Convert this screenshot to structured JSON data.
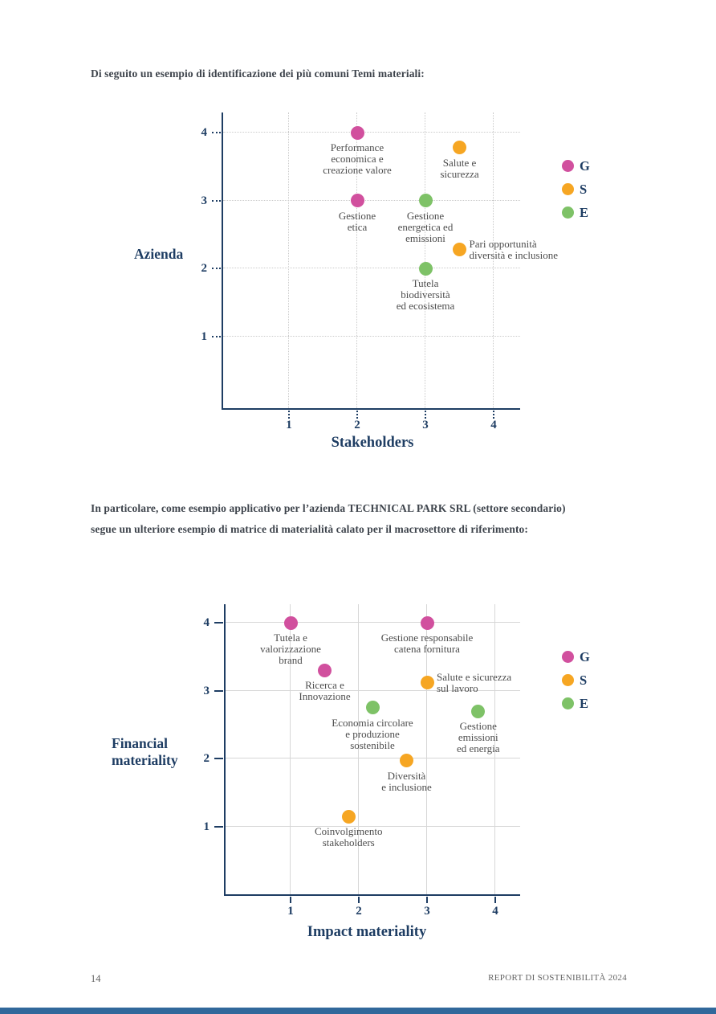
{
  "page": {
    "intro_text": "Di seguito un esempio di identificazione dei più comuni Temi materiali:",
    "paragraph2_line1": "In particolare, come esempio applicativo per l’azienda TECHNICAL PARK SRL (settore secondario)",
    "paragraph2_line2": "segue un ulteriore esempio di matrice di materialità calato per il macrosettore di riferimento:",
    "footer": {
      "page_number": "14",
      "report_title": "REPORT DI SOSTENIBILITÀ 2024"
    }
  },
  "colors": {
    "g_pink": "#d1509e",
    "s_orange": "#f6a623",
    "e_green": "#7ec267",
    "axis_navy": "#1e3d63",
    "point_label_gray": "#4d4d4d",
    "body_text": "#3e444c",
    "footer_gray": "#636363",
    "grid_gray": "#d2d2d2",
    "bottom_bar_blue": "#31689b"
  },
  "legend": {
    "items": [
      {
        "label": "G",
        "color": "#d1509e"
      },
      {
        "label": "S",
        "color": "#f6a623"
      },
      {
        "label": "E",
        "color": "#7ec267"
      }
    ]
  },
  "chart_data": [
    {
      "type": "scatter",
      "xlabel": "Stakeholders",
      "ylabel": "Azienda",
      "xticks": [
        1,
        2,
        3,
        4
      ],
      "yticks": [
        1,
        2,
        3,
        4
      ],
      "xlim": [
        0,
        4.4
      ],
      "ylim": [
        0,
        4.3
      ],
      "grid": "dotted",
      "legend_position": "right",
      "legend_entries": [
        "G",
        "S",
        "E"
      ],
      "points": [
        {
          "label": "Performance economica e creazione valore",
          "label_lines": [
            "Performance",
            "economica e",
            "creazione valore"
          ],
          "x": 2,
          "y": 4,
          "series": "G",
          "label_pos": "below"
        },
        {
          "label": "Salute e sicurezza",
          "label_lines": [
            "Salute e",
            "sicurezza"
          ],
          "x": 3.5,
          "y": 3.78,
          "series": "S",
          "label_pos": "below"
        },
        {
          "label": "Gestione etica",
          "label_lines": [
            "Gestione",
            "etica"
          ],
          "x": 2,
          "y": 3,
          "series": "G",
          "label_pos": "below"
        },
        {
          "label": "Gestione energetica ed emissioni",
          "label_lines": [
            "Gestione",
            "energetica ed",
            "emissioni"
          ],
          "x": 3,
          "y": 3,
          "series": "E",
          "label_pos": "below"
        },
        {
          "label": "Pari opportunità diversità e inclusione",
          "label_lines": [
            "Pari opportunità",
            "diversità e inclusione"
          ],
          "x": 3.5,
          "y": 2.28,
          "series": "S",
          "label_pos": "right"
        },
        {
          "label": "Tutela biodiversità ed ecosistema",
          "label_lines": [
            "Tutela",
            "biodiversità",
            "ed ecosistema"
          ],
          "x": 3,
          "y": 2,
          "series": "E",
          "label_pos": "below"
        }
      ]
    },
    {
      "type": "scatter",
      "xlabel": "Impact materiality",
      "ylabel": "Financial materiality",
      "ylabel_lines": [
        "Financial",
        "materiality"
      ],
      "xticks": [
        1,
        2,
        3,
        4
      ],
      "yticks": [
        1,
        2,
        3,
        4
      ],
      "xlim": [
        0,
        4.4
      ],
      "ylim": [
        0,
        4.3
      ],
      "grid": "solid",
      "legend_position": "right",
      "legend_entries": [
        "G",
        "S",
        "E"
      ],
      "points": [
        {
          "label": "Tutela e valorizzazione brand",
          "label_lines": [
            "Tutela e",
            "valorizzazione",
            "brand"
          ],
          "x": 1,
          "y": 4,
          "series": "G",
          "label_pos": "below"
        },
        {
          "label": "Gestione responsabile catena fornitura",
          "label_lines": [
            "Gestione responsabile",
            "catena fornitura"
          ],
          "x": 3,
          "y": 4,
          "series": "G",
          "label_pos": "below"
        },
        {
          "label": "Ricerca e Innovazione",
          "label_lines": [
            "Ricerca e",
            "Innovazione"
          ],
          "x": 1.5,
          "y": 3.3,
          "series": "G",
          "label_pos": "below"
        },
        {
          "label": "Salute e sicurezza sul lavoro",
          "label_lines": [
            "Salute e sicurezza",
            "sul lavoro"
          ],
          "x": 3,
          "y": 3.12,
          "series": "S",
          "label_pos": "right"
        },
        {
          "label": "Economia circolare e produzione sostenibile",
          "label_lines": [
            "Economia circolare",
            "e produzione",
            "sostenibile"
          ],
          "x": 2.2,
          "y": 2.75,
          "series": "E",
          "label_pos": "below"
        },
        {
          "label": "Gestione emissioni ed energia",
          "label_lines": [
            "Gestione",
            "emissioni",
            "ed energia"
          ],
          "x": 3.75,
          "y": 2.7,
          "series": "E",
          "label_pos": "below"
        },
        {
          "label": "Diversità e inclusione",
          "label_lines": [
            "Diversità",
            "e inclusione"
          ],
          "x": 2.7,
          "y": 1.97,
          "series": "S",
          "label_pos": "below"
        },
        {
          "label": "Coinvolgimento stakeholders",
          "label_lines": [
            "Coinvolgimento",
            "stakeholders"
          ],
          "x": 1.85,
          "y": 1.15,
          "series": "S",
          "label_pos": "below"
        }
      ]
    }
  ]
}
